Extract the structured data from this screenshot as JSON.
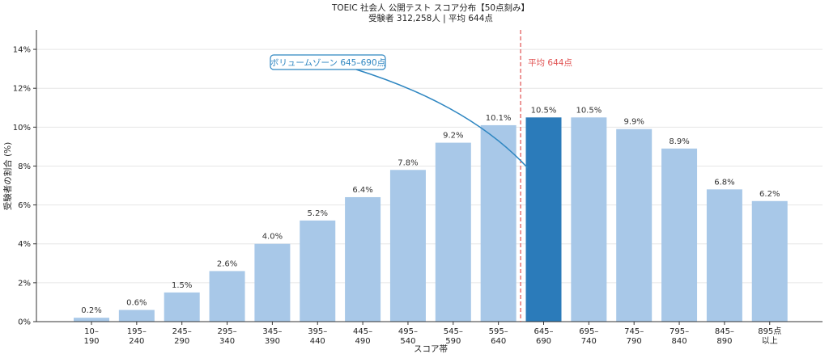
{
  "title": "TOEIC 社会人 公開テスト スコア分布【50点刻み】",
  "subtitle": "受験者 312,258人 | 平均 644点",
  "chart_data": {
    "type": "bar",
    "title": "TOEIC 社会人 公開テスト スコア分布【50点刻み】",
    "subtitle": "受験者 312,258人 | 平均 644点",
    "xlabel": "スコア帯",
    "ylabel": "受験者の割合 (%)",
    "ylim": [
      0,
      15
    ],
    "yticks": [
      0,
      2,
      4,
      6,
      8,
      10,
      12,
      14
    ],
    "ytick_labels": [
      "0%",
      "2%",
      "4%",
      "6%",
      "8%",
      "10%",
      "12%",
      "14%"
    ],
    "grid": "horizontal",
    "categories": [
      [
        "10–",
        "190"
      ],
      [
        "195–",
        "240"
      ],
      [
        "245–",
        "290"
      ],
      [
        "295–",
        "340"
      ],
      [
        "345–",
        "390"
      ],
      [
        "395–",
        "440"
      ],
      [
        "445–",
        "490"
      ],
      [
        "495–",
        "540"
      ],
      [
        "545–",
        "590"
      ],
      [
        "595–",
        "640"
      ],
      [
        "645–",
        "690"
      ],
      [
        "695–",
        "740"
      ],
      [
        "745–",
        "790"
      ],
      [
        "795–",
        "840"
      ],
      [
        "845–",
        "890"
      ],
      [
        "895点",
        "以上"
      ]
    ],
    "values": [
      0.2,
      0.6,
      1.5,
      2.6,
      4.0,
      5.2,
      6.4,
      7.8,
      9.2,
      10.1,
      10.5,
      10.5,
      9.9,
      8.9,
      6.8,
      6.2
    ],
    "value_labels": [
      "0.2%",
      "0.6%",
      "1.5%",
      "2.6%",
      "4.0%",
      "5.2%",
      "6.4%",
      "7.8%",
      "9.2%",
      "10.1%",
      "10.5%",
      "10.5%",
      "9.9%",
      "8.9%",
      "6.8%",
      "6.2%"
    ],
    "highlight_index": 10,
    "colors": {
      "bar": "#a8c8e8",
      "highlight": "#2b7bba",
      "mean_line": "#e05050",
      "annotation": "#2e86c1"
    },
    "mean_line": {
      "value": 644,
      "label": "平均 644点"
    },
    "annotation": {
      "text": "ボリュームゾーン 645–690点"
    }
  }
}
